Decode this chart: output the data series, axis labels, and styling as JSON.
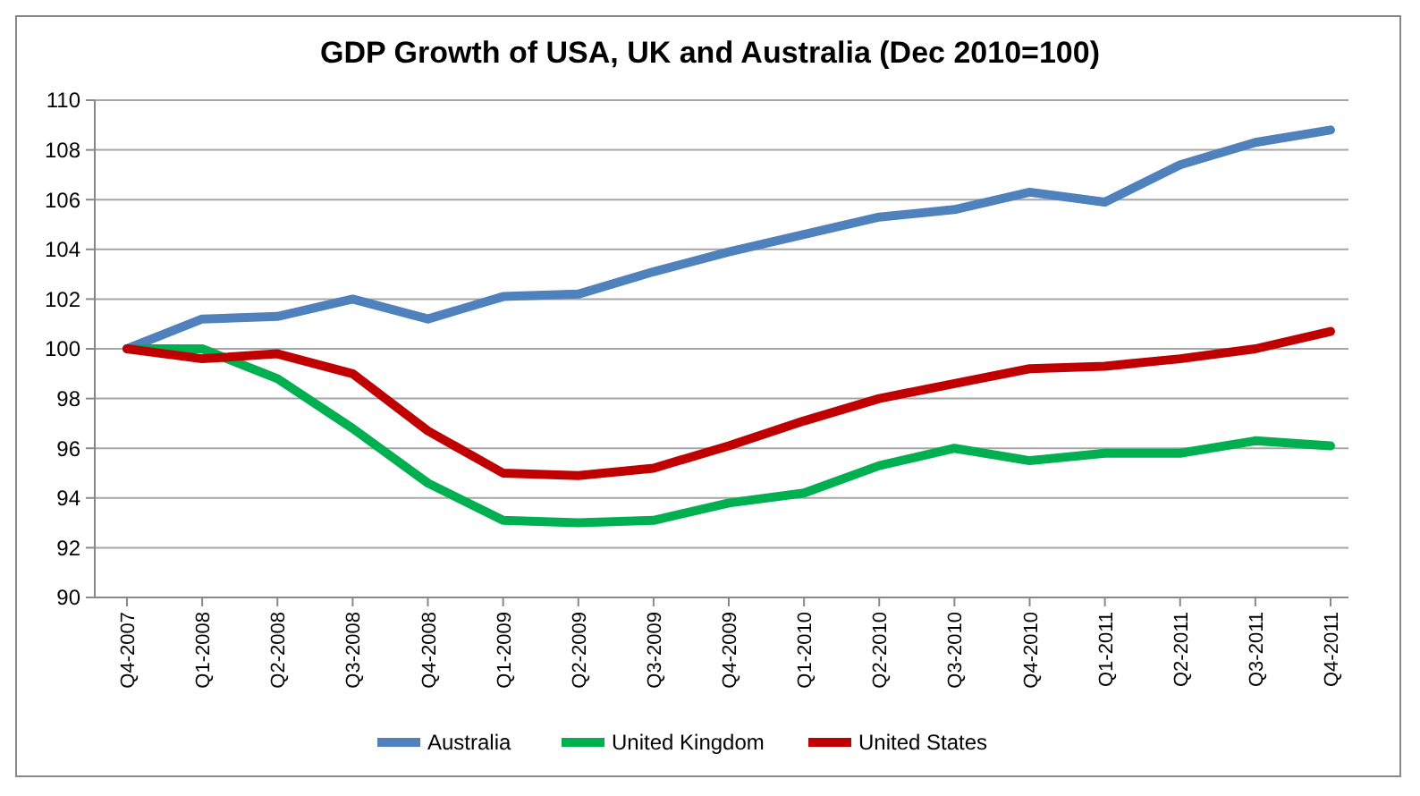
{
  "chart_data": {
    "type": "line",
    "title": "GDP Growth of USA, UK and Australia (Dec 2010=100)",
    "categories": [
      "Q4-2007",
      "Q1-2008",
      "Q2-2008",
      "Q3-2008",
      "Q4-2008",
      "Q1-2009",
      "Q2-2009",
      "Q3-2009",
      "Q4-2009",
      "Q1-2010",
      "Q2-2010",
      "Q3-2010",
      "Q4-2010",
      "Q1-2011",
      "Q2-2011",
      "Q3-2011",
      "Q4-2011"
    ],
    "series": [
      {
        "name": "Australia",
        "color": "#4f81bd",
        "values": [
          100,
          101.2,
          101.3,
          102.0,
          101.2,
          102.1,
          102.2,
          103.1,
          103.9,
          104.6,
          105.3,
          105.6,
          106.3,
          105.9,
          107.4,
          108.3,
          108.8
        ]
      },
      {
        "name": "United Kingdom",
        "color": "#00b050",
        "values": [
          100,
          100.0,
          98.8,
          96.8,
          94.6,
          93.1,
          93.0,
          93.1,
          93.8,
          94.2,
          95.3,
          96.0,
          95.5,
          95.8,
          95.8,
          96.3,
          96.1
        ]
      },
      {
        "name": "United States",
        "color": "#c00000",
        "values": [
          100,
          99.6,
          99.8,
          99.0,
          96.7,
          95.0,
          94.9,
          95.2,
          96.1,
          97.1,
          98.0,
          98.6,
          99.2,
          99.3,
          99.6,
          100.0,
          100.7
        ]
      }
    ],
    "ylim": [
      90,
      110
    ],
    "yticks": [
      90,
      92,
      94,
      96,
      98,
      100,
      102,
      104,
      106,
      108,
      110
    ],
    "grid": "y",
    "legend": "bottom",
    "marker": "none",
    "line_style": "solid"
  }
}
